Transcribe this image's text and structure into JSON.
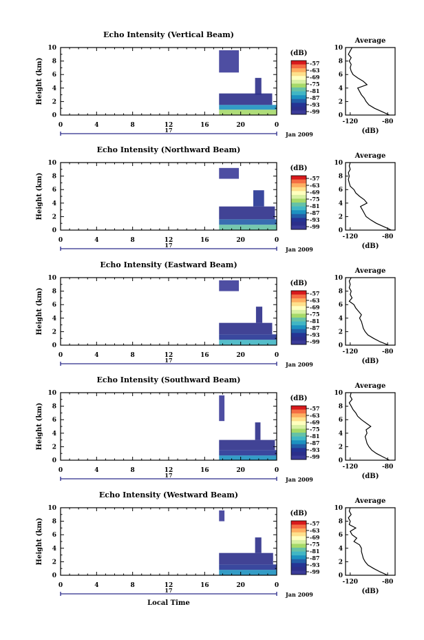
{
  "figure": {
    "x_axis_label": "Local Time",
    "date_label": "Jan 2009",
    "day_label": "17"
  },
  "colorbar": {
    "unit": "(dB)",
    "ticks": [
      "-57",
      "-63",
      "-69",
      "-75",
      "-81",
      "-87",
      "-93",
      "-99"
    ],
    "colors": [
      "#d7191c",
      "#f46d43",
      "#fdae61",
      "#fee08b",
      "#ffffbf",
      "#d9f0a3",
      "#a6d96a",
      "#66c2a5",
      "#41b6c4",
      "#1d91c0",
      "#225ea8",
      "#253494",
      "#2c2f8a",
      "#3b3b98"
    ]
  },
  "chart_data": [
    {
      "type": "heatmap",
      "title": "Echo Intensity (Vertical Beam)",
      "ylabel": "Height (km)",
      "xlabel": "Local Time",
      "x_ticks": [
        "0",
        "4",
        "8",
        "12",
        "16",
        "20",
        "0"
      ],
      "y_ticks": [
        "0",
        "2",
        "4",
        "6",
        "8",
        "10"
      ],
      "xlim": [
        0,
        24
      ],
      "ylim": [
        0,
        10
      ],
      "colorbar_unit": "dB",
      "colorbar_ticks": [
        -57,
        -63,
        -69,
        -75,
        -81,
        -87,
        -93,
        -99
      ],
      "echo_regions": [
        {
          "x": [
            17.6,
            24
          ],
          "y": [
            0,
            0.8
          ],
          "level": -75
        },
        {
          "x": [
            17.6,
            24
          ],
          "y": [
            0.8,
            1.5
          ],
          "level": -87
        },
        {
          "x": [
            17.6,
            23.5
          ],
          "y": [
            1.5,
            3.2
          ],
          "level": -96
        },
        {
          "x": [
            21.6,
            22.3
          ],
          "y": [
            3.0,
            5.5
          ],
          "level": -95
        },
        {
          "x": [
            17.6,
            19.8
          ],
          "y": [
            6.3,
            9.6
          ],
          "level": -99
        }
      ],
      "profile": {
        "title": "Average",
        "xlabel": "(dB)",
        "x_ticks": [
          "-120",
          "-80"
        ],
        "xlim": [
          -125,
          -72
        ],
        "heights": [
          0,
          0.5,
          1,
          1.5,
          2,
          2.5,
          3,
          3.5,
          4,
          4.5,
          5,
          5.5,
          6,
          6.5,
          7,
          7.5,
          8,
          8.5,
          9,
          9.5,
          10
        ],
        "values": [
          -78,
          -86,
          -94,
          -100,
          -103,
          -105,
          -108,
          -110,
          -112,
          -102,
          -106,
          -112,
          -117,
          -119,
          -120,
          -119,
          -121,
          -119,
          -122,
          -120,
          -118
        ]
      }
    },
    {
      "type": "heatmap",
      "title": "Echo Intensity (Northward Beam)",
      "ylabel": "Height (km)",
      "xlabel": "Local Time",
      "x_ticks": [
        "0",
        "4",
        "8",
        "12",
        "16",
        "20",
        "0"
      ],
      "y_ticks": [
        "0",
        "2",
        "4",
        "6",
        "8",
        "10"
      ],
      "xlim": [
        0,
        24
      ],
      "ylim": [
        0,
        10
      ],
      "colorbar_unit": "dB",
      "colorbar_ticks": [
        -57,
        -63,
        -69,
        -75,
        -81,
        -87,
        -93,
        -99
      ],
      "echo_regions": [
        {
          "x": [
            17.6,
            24
          ],
          "y": [
            0,
            0.8
          ],
          "level": -81
        },
        {
          "x": [
            17.6,
            24
          ],
          "y": [
            0.8,
            1.6
          ],
          "level": -90
        },
        {
          "x": [
            17.6,
            23.8
          ],
          "y": [
            1.6,
            3.5
          ],
          "level": -96
        },
        {
          "x": [
            21.4,
            22.6
          ],
          "y": [
            3.5,
            5.9
          ],
          "level": -93
        },
        {
          "x": [
            17.6,
            19.8
          ],
          "y": [
            7.6,
            9.2
          ],
          "level": -99
        }
      ],
      "profile": {
        "title": "Average",
        "xlabel": "(dB)",
        "x_ticks": [
          "-120",
          "-80"
        ],
        "xlim": [
          -125,
          -72
        ],
        "heights": [
          0,
          0.5,
          1,
          1.5,
          2,
          2.5,
          3,
          3.5,
          4,
          4.5,
          5,
          5.5,
          6,
          6.5,
          7,
          7.5,
          8,
          8.5,
          9,
          9.5,
          10
        ],
        "values": [
          -76,
          -84,
          -92,
          -98,
          -103,
          -105,
          -107,
          -109,
          -102,
          -105,
          -110,
          -114,
          -116,
          -120,
          -121,
          -122,
          -121,
          -122,
          -120,
          -121,
          -120
        ]
      }
    },
    {
      "type": "heatmap",
      "title": "Echo Intensity (Eastward Beam)",
      "ylabel": "Height (km)",
      "xlabel": "Local Time",
      "x_ticks": [
        "0",
        "4",
        "8",
        "12",
        "16",
        "20",
        "0"
      ],
      "y_ticks": [
        "0",
        "2",
        "4",
        "6",
        "8",
        "10"
      ],
      "xlim": [
        0,
        24
      ],
      "ylim": [
        0,
        10
      ],
      "colorbar_unit": "dB",
      "colorbar_ticks": [
        -57,
        -63,
        -69,
        -75,
        -81,
        -87,
        -93,
        -99
      ],
      "echo_regions": [
        {
          "x": [
            17.6,
            24
          ],
          "y": [
            0,
            0.8
          ],
          "level": -84
        },
        {
          "x": [
            17.6,
            24
          ],
          "y": [
            0.8,
            1.6
          ],
          "level": -92
        },
        {
          "x": [
            17.6,
            23.5
          ],
          "y": [
            1.6,
            3.3
          ],
          "level": -97
        },
        {
          "x": [
            21.7,
            22.4
          ],
          "y": [
            3.3,
            5.7
          ],
          "level": -95
        },
        {
          "x": [
            17.6,
            19.8
          ],
          "y": [
            8.0,
            9.6
          ],
          "level": -99
        }
      ],
      "profile": {
        "title": "Average",
        "xlabel": "(dB)",
        "x_ticks": [
          "-120",
          "-80"
        ],
        "xlim": [
          -125,
          -72
        ],
        "heights": [
          0,
          0.5,
          1,
          1.5,
          2,
          2.5,
          3,
          3.5,
          4,
          4.5,
          5,
          5.5,
          6,
          6.5,
          7,
          7.5,
          8,
          8.5,
          9,
          9.5,
          10
        ],
        "values": [
          -79,
          -88,
          -95,
          -101,
          -104,
          -106,
          -107,
          -108,
          -110,
          -108,
          -111,
          -114,
          -116,
          -121,
          -118,
          -120,
          -119,
          -121,
          -120,
          -121,
          -119
        ]
      }
    },
    {
      "type": "heatmap",
      "title": "Echo Intensity (Southward Beam)",
      "ylabel": "Height (km)",
      "xlabel": "Local Time",
      "x_ticks": [
        "0",
        "4",
        "8",
        "12",
        "16",
        "20",
        "0"
      ],
      "y_ticks": [
        "0",
        "2",
        "4",
        "6",
        "8",
        "10"
      ],
      "xlim": [
        0,
        24
      ],
      "ylim": [
        0,
        10
      ],
      "colorbar_unit": "dB",
      "colorbar_ticks": [
        -57,
        -63,
        -69,
        -75,
        -81,
        -87,
        -93,
        -99
      ],
      "echo_regions": [
        {
          "x": [
            17.6,
            24
          ],
          "y": [
            0,
            0.7
          ],
          "level": -85
        },
        {
          "x": [
            17.6,
            24
          ],
          "y": [
            0.7,
            1.5
          ],
          "level": -93
        },
        {
          "x": [
            17.6,
            23.8
          ],
          "y": [
            1.5,
            3.0
          ],
          "level": -97
        },
        {
          "x": [
            21.6,
            22.2
          ],
          "y": [
            3.0,
            5.6
          ],
          "level": -96
        },
        {
          "x": [
            17.6,
            18.2
          ],
          "y": [
            5.8,
            9.6
          ],
          "level": -99
        }
      ],
      "profile": {
        "title": "Average",
        "xlabel": "(dB)",
        "x_ticks": [
          "-120",
          "-80"
        ],
        "xlim": [
          -125,
          -72
        ],
        "heights": [
          0,
          0.5,
          1,
          1.5,
          2,
          2.5,
          3,
          3.5,
          4,
          4.5,
          5,
          5.5,
          6,
          6.5,
          7,
          7.5,
          8,
          8.5,
          9,
          9.5,
          10
        ],
        "values": [
          -78,
          -85,
          -92,
          -97,
          -100,
          -102,
          -103,
          -104,
          -102,
          -103,
          -98,
          -103,
          -108,
          -112,
          -114,
          -117,
          -119,
          -121,
          -118,
          -120,
          -119
        ]
      }
    },
    {
      "type": "heatmap",
      "title": "Echo Intensity (Westward Beam)",
      "ylabel": "Height (km)",
      "xlabel": "Local Time",
      "x_ticks": [
        "0",
        "4",
        "8",
        "12",
        "16",
        "20",
        "0"
      ],
      "y_ticks": [
        "0",
        "2",
        "4",
        "6",
        "8",
        "10"
      ],
      "xlim": [
        0,
        24
      ],
      "ylim": [
        0,
        10
      ],
      "colorbar_unit": "dB",
      "colorbar_ticks": [
        -57,
        -63,
        -69,
        -75,
        -81,
        -87,
        -93,
        -99
      ],
      "echo_regions": [
        {
          "x": [
            17.6,
            24
          ],
          "y": [
            0,
            0.8
          ],
          "level": -85
        },
        {
          "x": [
            17.6,
            24
          ],
          "y": [
            0.8,
            1.6
          ],
          "level": -93
        },
        {
          "x": [
            17.6,
            23.6
          ],
          "y": [
            1.6,
            3.3
          ],
          "level": -97
        },
        {
          "x": [
            21.6,
            22.3
          ],
          "y": [
            3.3,
            5.6
          ],
          "level": -96
        },
        {
          "x": [
            17.6,
            18.2
          ],
          "y": [
            8.0,
            9.6
          ],
          "level": -99
        }
      ],
      "profile": {
        "title": "Average",
        "xlabel": "(dB)",
        "x_ticks": [
          "-120",
          "-80"
        ],
        "xlim": [
          -125,
          -72
        ],
        "heights": [
          0,
          0.5,
          1,
          1.5,
          2,
          2.5,
          3,
          3.5,
          4,
          4.5,
          5,
          5.5,
          6,
          6.5,
          7,
          7.5,
          8,
          8.5,
          9,
          9.5,
          10
        ],
        "values": [
          -80,
          -88,
          -95,
          -101,
          -104,
          -106,
          -107,
          -108,
          -108,
          -110,
          -116,
          -113,
          -118,
          -120,
          -114,
          -121,
          -120,
          -122,
          -119,
          -121,
          -120
        ]
      }
    }
  ]
}
